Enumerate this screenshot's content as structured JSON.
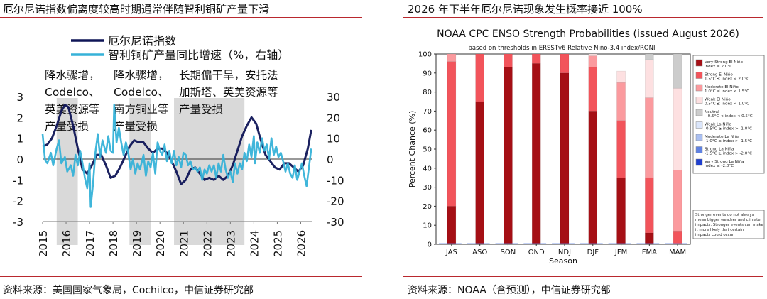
{
  "left": {
    "title": "厄尔尼诺指数偏离度较高时期通常伴随智利铜矿产量下滑",
    "source": "资料来源：美国国家气象局，Cochilco，中信证券研究部",
    "chart_data": {
      "type": "line",
      "legend": [
        "厄尔尼诺指数",
        "智利铜矿产量同比增速（%，右轴）"
      ],
      "x_ticks": [
        "2015",
        "2016",
        "2017",
        "2018",
        "2019",
        "2020",
        "2021",
        "2022",
        "2023",
        "2024",
        "2025",
        "2026"
      ],
      "y_left_ticks": [
        "3",
        "2",
        "1",
        "0",
        "-1",
        "-2",
        "-3"
      ],
      "y_right_ticks": [
        "30",
        "20",
        "10",
        "0",
        "-10",
        "-20",
        "-30"
      ],
      "ylim_left": [
        -3,
        3
      ],
      "ylim_right": [
        -30,
        30
      ],
      "xlim": [
        2015.0,
        2026.5
      ],
      "shaded_periods": [
        [
          2015.6,
          2016.5
        ],
        [
          2018.7,
          2019.6
        ],
        [
          2020.6,
          2023.6
        ]
      ],
      "annotations": [
        [
          "降水骤增，",
          "Codelco、",
          "英美资源等",
          "产量受损"
        ],
        [
          "降水骤增，",
          "Codelco、",
          "南方铜业等",
          "产量受损"
        ],
        [
          "长期偏干旱，安托法",
          "加斯塔、英美资源等",
          "产量受损"
        ]
      ],
      "series": [
        {
          "name": "厄尔尼诺指数",
          "color": "#0f1557",
          "axis": "left",
          "points": [
            [
              2015.0,
              0.6
            ],
            [
              2015.2,
              0.7
            ],
            [
              2015.4,
              1.0
            ],
            [
              2015.6,
              1.6
            ],
            [
              2015.8,
              2.3
            ],
            [
              2015.95,
              2.6
            ],
            [
              2016.1,
              2.5
            ],
            [
              2016.3,
              1.6
            ],
            [
              2016.5,
              0.5
            ],
            [
              2016.7,
              -0.5
            ],
            [
              2016.9,
              -0.7
            ],
            [
              2017.1,
              -0.3
            ],
            [
              2017.3,
              0.2
            ],
            [
              2017.5,
              0.2
            ],
            [
              2017.7,
              -0.3
            ],
            [
              2017.9,
              -0.9
            ],
            [
              2018.1,
              -0.8
            ],
            [
              2018.3,
              -0.4
            ],
            [
              2018.5,
              0.1
            ],
            [
              2018.7,
              0.6
            ],
            [
              2018.9,
              0.9
            ],
            [
              2019.1,
              0.8
            ],
            [
              2019.3,
              0.8
            ],
            [
              2019.5,
              0.5
            ],
            [
              2019.7,
              0.3
            ],
            [
              2019.9,
              0.5
            ],
            [
              2020.1,
              0.5
            ],
            [
              2020.3,
              0.3
            ],
            [
              2020.5,
              -0.1
            ],
            [
              2020.7,
              -0.6
            ],
            [
              2020.9,
              -1.2
            ],
            [
              2021.1,
              -1.0
            ],
            [
              2021.3,
              -0.5
            ],
            [
              2021.5,
              -0.4
            ],
            [
              2021.7,
              -0.7
            ],
            [
              2021.9,
              -1.0
            ],
            [
              2022.1,
              -0.9
            ],
            [
              2022.3,
              -1.0
            ],
            [
              2022.5,
              -0.8
            ],
            [
              2022.7,
              -1.0
            ],
            [
              2022.9,
              -0.8
            ],
            [
              2023.1,
              -0.3
            ],
            [
              2023.3,
              0.4
            ],
            [
              2023.5,
              1.1
            ],
            [
              2023.7,
              1.6
            ],
            [
              2023.9,
              2.0
            ],
            [
              2024.1,
              1.7
            ],
            [
              2024.3,
              0.9
            ],
            [
              2024.5,
              0.2
            ],
            [
              2024.7,
              -0.1
            ],
            [
              2024.9,
              -0.4
            ],
            [
              2025.1,
              -0.5
            ],
            [
              2025.3,
              -0.2
            ],
            [
              2025.5,
              -0.2
            ],
            [
              2025.7,
              -0.4
            ],
            [
              2025.9,
              -0.6
            ],
            [
              2026.1,
              -0.3
            ],
            [
              2026.3,
              0.5
            ],
            [
              2026.45,
              1.4
            ]
          ]
        },
        {
          "name": "智利铜矿产量同比增速（%，右轴）",
          "color": "#36b2d8",
          "axis": "right",
          "points": [
            [
              2015.0,
              12
            ],
            [
              2015.1,
              0
            ],
            [
              2015.2,
              -2
            ],
            [
              2015.35,
              3
            ],
            [
              2015.45,
              -3
            ],
            [
              2015.6,
              5
            ],
            [
              2015.7,
              9
            ],
            [
              2015.8,
              -2
            ],
            [
              2015.95,
              1
            ],
            [
              2016.05,
              -6
            ],
            [
              2016.2,
              -3
            ],
            [
              2016.3,
              -8
            ],
            [
              2016.4,
              2
            ],
            [
              2016.5,
              -3
            ],
            [
              2016.6,
              4
            ],
            [
              2016.7,
              -2
            ],
            [
              2016.8,
              -9
            ],
            [
              2016.9,
              -14
            ],
            [
              2017.0,
              -2
            ],
            [
              2017.05,
              -23
            ],
            [
              2017.15,
              -12
            ],
            [
              2017.25,
              3
            ],
            [
              2017.35,
              12
            ],
            [
              2017.45,
              1
            ],
            [
              2017.55,
              9
            ],
            [
              2017.7,
              3
            ],
            [
              2017.8,
              11
            ],
            [
              2017.9,
              4
            ],
            [
              2018.0,
              3
            ],
            [
              2018.05,
              26
            ],
            [
              2018.15,
              8
            ],
            [
              2018.25,
              15
            ],
            [
              2018.35,
              8
            ],
            [
              2018.45,
              2
            ],
            [
              2018.55,
              8
            ],
            [
              2018.65,
              3
            ],
            [
              2018.75,
              -5
            ],
            [
              2018.85,
              0
            ],
            [
              2018.95,
              -7
            ],
            [
              2019.05,
              -2
            ],
            [
              2019.15,
              -5
            ],
            [
              2019.3,
              2
            ],
            [
              2019.4,
              -8
            ],
            [
              2019.5,
              -1
            ],
            [
              2019.6,
              -4
            ],
            [
              2019.7,
              3
            ],
            [
              2019.8,
              -7
            ],
            [
              2019.9,
              8
            ],
            [
              2020.0,
              4
            ],
            [
              2020.1,
              2
            ],
            [
              2020.2,
              7
            ],
            [
              2020.3,
              -1
            ],
            [
              2020.4,
              4
            ],
            [
              2020.5,
              -2
            ],
            [
              2020.6,
              4
            ],
            [
              2020.7,
              -3
            ],
            [
              2020.8,
              1
            ],
            [
              2020.9,
              -4
            ],
            [
              2021.0,
              3
            ],
            [
              2021.1,
              2
            ],
            [
              2021.2,
              -3
            ],
            [
              2021.3,
              -1
            ],
            [
              2021.4,
              -5
            ],
            [
              2021.5,
              -4
            ],
            [
              2021.6,
              -6
            ],
            [
              2021.7,
              -4
            ],
            [
              2021.8,
              -10
            ],
            [
              2021.9,
              -5
            ],
            [
              2022.0,
              -7
            ],
            [
              2022.1,
              -3
            ],
            [
              2022.2,
              -6
            ],
            [
              2022.3,
              -3
            ],
            [
              2022.4,
              -9
            ],
            [
              2022.5,
              -2
            ],
            [
              2022.6,
              -6
            ],
            [
              2022.7,
              2
            ],
            [
              2022.8,
              -5
            ],
            [
              2022.9,
              -9
            ],
            [
              2023.0,
              -6
            ],
            [
              2023.1,
              -11
            ],
            [
              2023.2,
              -2
            ],
            [
              2023.3,
              -7
            ],
            [
              2023.4,
              -2
            ],
            [
              2023.5,
              -5
            ],
            [
              2023.6,
              3
            ],
            [
              2023.7,
              -1
            ],
            [
              2023.8,
              7
            ],
            [
              2023.9,
              1
            ],
            [
              2024.0,
              11
            ],
            [
              2024.05,
              -2
            ],
            [
              2024.15,
              8
            ],
            [
              2024.25,
              3
            ],
            [
              2024.35,
              10
            ],
            [
              2024.45,
              4
            ],
            [
              2024.55,
              7
            ],
            [
              2024.65,
              0
            ],
            [
              2024.75,
              10
            ],
            [
              2024.85,
              2
            ],
            [
              2024.95,
              6
            ],
            [
              2025.05,
              1
            ],
            [
              2025.15,
              3
            ],
            [
              2025.25,
              -1
            ],
            [
              2025.35,
              -6
            ],
            [
              2025.45,
              -2
            ],
            [
              2025.55,
              -7
            ],
            [
              2025.65,
              -9
            ],
            [
              2025.75,
              -3
            ],
            [
              2025.85,
              -10
            ],
            [
              2025.95,
              -6
            ],
            [
              2026.05,
              -2
            ],
            [
              2026.15,
              -8
            ],
            [
              2026.25,
              -13
            ],
            [
              2026.35,
              -4
            ],
            [
              2026.45,
              5
            ]
          ]
        }
      ]
    }
  },
  "right": {
    "title": "2026 年下半年厄尔尼诺现象发生概率接近 100%",
    "source": "资料来源：NOAA（含预测），中信证券研究部",
    "chart_data": {
      "type": "bar",
      "title": "NOAA CPC ENSO Strength Probabilities (issued August 2026)",
      "subtitle": "based on thresholds in ERSSTv6 Relative Niño-3.4 index/RONI",
      "xlabel": "Season",
      "ylabel": "Percent Chance (%)",
      "ylim": [
        0,
        100
      ],
      "y_ticks": [
        "0",
        "10",
        "20",
        "30",
        "40",
        "50",
        "60",
        "70",
        "80",
        "90",
        "100"
      ],
      "categories": [
        "JAS",
        "ASO",
        "SON",
        "OND",
        "NDJ",
        "DJF",
        "JFM",
        "FMA",
        "MAM"
      ],
      "series": [
        {
          "name": "Very Strong El Niño",
          "sublabel": "index ≥ 2.0°C",
          "color": "#a50f15",
          "values": [
            20,
            75,
            93,
            95,
            90,
            70,
            35,
            6,
            0
          ]
        },
        {
          "name": "Strong El Niño",
          "sublabel": "1.5°C ≤ index < 2.0°C",
          "color": "#f2545b",
          "values": [
            76,
            25,
            7,
            5,
            10,
            23,
            30,
            29,
            7
          ]
        },
        {
          "name": "Moderate El Niño",
          "sublabel": "1.0°C ≤ index < 1.5°C",
          "color": "#fb9a9e",
          "values": [
            4,
            0,
            0,
            0,
            0,
            6,
            20,
            42,
            32
          ]
        },
        {
          "name": "Weak El Niño",
          "sublabel": "0.5°C ≤ index < 1.0°C",
          "color": "#fde0e1",
          "values": [
            0,
            0,
            0,
            0,
            0,
            1,
            6,
            20,
            43
          ]
        },
        {
          "name": "Neutral",
          "sublabel": "−0.5°C < index < 0.5°C",
          "color": "#cccccc",
          "values": [
            0,
            0,
            0,
            0,
            0,
            0,
            0,
            3,
            18
          ]
        },
        {
          "name": "Weak La Niña",
          "sublabel": "-0.5°C ≥ index > -1.0°C",
          "color": "#dbe6fb",
          "values": [
            0,
            0,
            0,
            0,
            0,
            0,
            0,
            0,
            0
          ]
        },
        {
          "name": "Moderate La Niña",
          "sublabel": "-1.0°C ≥ index > -1.5°C",
          "color": "#a9bff2",
          "values": [
            0,
            0,
            0,
            0,
            0,
            0,
            0,
            0,
            0
          ]
        },
        {
          "name": "Strong La Niña",
          "sublabel": "-1.5°C ≥ index > -2.0°C",
          "color": "#5f82e3",
          "values": [
            0,
            0,
            0,
            0,
            0,
            0,
            0,
            0,
            0
          ]
        },
        {
          "name": "Very Strong La Niña",
          "sublabel": "index ≤ -2.0°C",
          "color": "#1f3fcf",
          "values": [
            0,
            0,
            0,
            0,
            0,
            0,
            0,
            0,
            0
          ]
        }
      ],
      "note": "Stronger events do not always mean bigger weather and climate impacts. Stronger events can make it more likely that certain impacts could occur."
    }
  }
}
